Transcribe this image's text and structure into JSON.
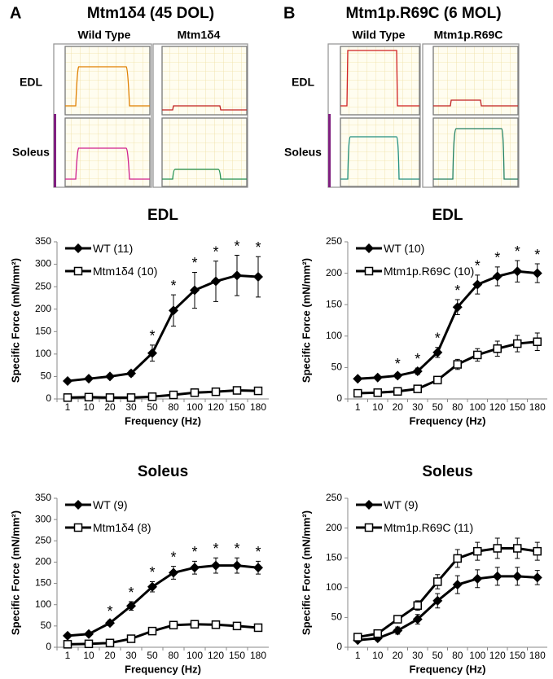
{
  "figure": {
    "panels": [
      {
        "label": "A",
        "title": "Mtm1δ4 (45 DOL)",
        "columns": [
          "Wild Type",
          "Mtm1δ4"
        ],
        "rows": [
          "EDL",
          "Soleus"
        ]
      },
      {
        "label": "B",
        "title": "Mtm1p.R69C (6 MOL)",
        "columns": [
          "Wild Type",
          "Mtm1p.R69C"
        ],
        "rows": [
          "EDL",
          "Soleus"
        ]
      }
    ]
  },
  "chart_data": [
    {
      "type": "line",
      "title": "EDL",
      "x_label": "Frequency (Hz)",
      "y_label": "Specific Force (mN/mm²)",
      "categories": [
        "1",
        "10",
        "20",
        "30",
        "50",
        "80",
        "100",
        "120",
        "150",
        "180"
      ],
      "ylim": [
        0,
        350
      ],
      "yticks": [
        0,
        50,
        100,
        150,
        200,
        250,
        300,
        350
      ],
      "legend": "upper left",
      "significance": [
        null,
        null,
        null,
        null,
        "*",
        "*",
        "*",
        "*",
        "*",
        "*"
      ],
      "series": [
        {
          "name": "WT (11)",
          "color": "#000000",
          "marker": "diamond",
          "values": [
            40,
            45,
            50,
            57,
            102,
            197,
            242,
            262,
            275,
            272
          ],
          "errors": [
            3,
            4,
            5,
            6,
            18,
            35,
            40,
            45,
            45,
            45
          ]
        },
        {
          "name": "Mtm1δ4 (10)",
          "color": "#000000",
          "marker": "square",
          "values": [
            3,
            4,
            3,
            3,
            5,
            9,
            14,
            16,
            19,
            18
          ],
          "errors": [
            1,
            1,
            1,
            1,
            1,
            2,
            2,
            3,
            3,
            3
          ]
        }
      ]
    },
    {
      "type": "line",
      "title": "EDL",
      "x_label": "Frequency (Hz)",
      "y_label": "Specific Force (mN/mm²)",
      "categories": [
        "1",
        "10",
        "20",
        "30",
        "50",
        "80",
        "100",
        "120",
        "150",
        "180"
      ],
      "ylim": [
        0,
        250
      ],
      "yticks": [
        0,
        50,
        100,
        150,
        200,
        250
      ],
      "legend": "upper left",
      "significance": [
        null,
        null,
        "*",
        "*",
        "*",
        "*",
        "*",
        "*",
        "*",
        "*"
      ],
      "series": [
        {
          "name": "WT (10)",
          "color": "#000000",
          "marker": "diamond",
          "values": [
            32,
            34,
            37,
            44,
            74,
            146,
            182,
            195,
            203,
            200
          ],
          "errors": [
            3,
            3,
            4,
            5,
            8,
            12,
            15,
            15,
            17,
            15
          ]
        },
        {
          "name": "Mtm1p.R69C (10)",
          "color": "#000000",
          "marker": "square",
          "values": [
            9,
            10,
            12,
            16,
            30,
            55,
            70,
            80,
            88,
            91
          ],
          "errors": [
            2,
            2,
            3,
            3,
            5,
            8,
            10,
            12,
            13,
            14
          ]
        }
      ]
    },
    {
      "type": "line",
      "title": "Soleus",
      "x_label": "Frequency (Hz)",
      "y_label": "Specific Force (mN/mm²)",
      "categories": [
        "1",
        "10",
        "20",
        "30",
        "50",
        "80",
        "100",
        "120",
        "150",
        "180"
      ],
      "ylim": [
        0,
        350
      ],
      "yticks": [
        0,
        50,
        100,
        150,
        200,
        250,
        300,
        350
      ],
      "legend": "upper left",
      "significance": [
        null,
        null,
        "*",
        "*",
        "*",
        "*",
        "*",
        "*",
        "*",
        "*"
      ],
      "series": [
        {
          "name": "WT (9)",
          "color": "#000000",
          "marker": "diamond",
          "values": [
            27,
            31,
            57,
            97,
            142,
            175,
            187,
            192,
            192,
            187
          ],
          "errors": [
            3,
            3,
            6,
            10,
            12,
            15,
            15,
            18,
            18,
            15
          ]
        },
        {
          "name": "Mtm1δ4 (8)",
          "color": "#000000",
          "marker": "square",
          "values": [
            7,
            8,
            10,
            20,
            38,
            52,
            54,
            53,
            50,
            46
          ],
          "errors": [
            1,
            1,
            2,
            3,
            4,
            5,
            5,
            5,
            5,
            4
          ]
        }
      ]
    },
    {
      "type": "line",
      "title": "Soleus",
      "x_label": "Frequency (Hz)",
      "y_label": "Specific Force (mN/mm²)",
      "categories": [
        "1",
        "10",
        "20",
        "30",
        "50",
        "80",
        "100",
        "120",
        "150",
        "180"
      ],
      "ylim": [
        0,
        250
      ],
      "yticks": [
        0,
        50,
        100,
        150,
        200,
        250
      ],
      "legend": "upper left",
      "series": [
        {
          "name": "WT (9)",
          "color": "#000000",
          "marker": "diamond",
          "values": [
            12,
            15,
            28,
            47,
            78,
            105,
            115,
            119,
            119,
            117
          ],
          "errors": [
            3,
            4,
            6,
            8,
            12,
            15,
            15,
            15,
            15,
            12
          ]
        },
        {
          "name": "Mtm1p.R69C (11)",
          "color": "#000000",
          "marker": "square",
          "values": [
            17,
            23,
            47,
            70,
            110,
            149,
            161,
            166,
            166,
            161
          ],
          "errors": [
            2,
            3,
            5,
            8,
            12,
            15,
            15,
            17,
            17,
            15
          ]
        }
      ]
    }
  ]
}
